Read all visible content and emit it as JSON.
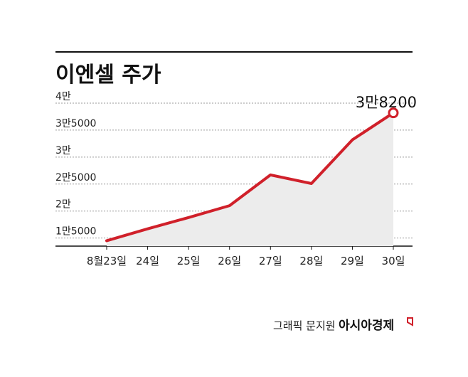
{
  "chart_data": {
    "type": "area",
    "title": "이엔셀 주가",
    "categories": [
      "8월23일",
      "24일",
      "25일",
      "26일",
      "27일",
      "28일",
      "29일",
      "30일"
    ],
    "values": [
      14500,
      16700,
      18800,
      21000,
      26700,
      25100,
      33200,
      38200
    ],
    "ylim": [
      13500,
      40000
    ],
    "yticks": [
      {
        "value": 15000,
        "label": "1만5000"
      },
      {
        "value": 20000,
        "label": "2만"
      },
      {
        "value": 25000,
        "label": "2만5000"
      },
      {
        "value": 30000,
        "label": "3만"
      },
      {
        "value": 35000,
        "label": "3만5000"
      },
      {
        "value": 40000,
        "label": "4만"
      }
    ],
    "annotation": "3만8200",
    "grid": true,
    "colors": {
      "line": "#d0202a",
      "fill": "#ececec",
      "grid": "#999999",
      "rule": "#111111"
    }
  },
  "credit": {
    "prefix": "그래픽 문지원",
    "brand": "아시아경제"
  }
}
